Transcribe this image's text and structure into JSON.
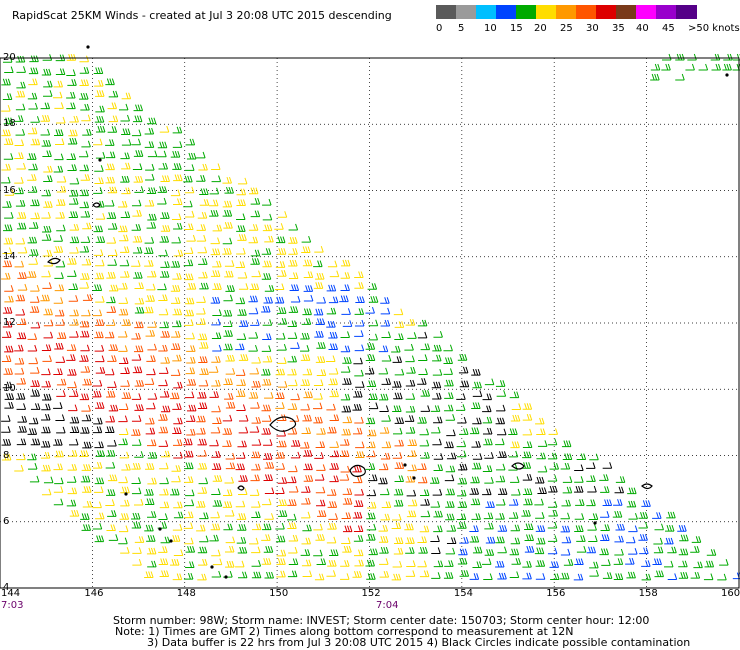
{
  "title": "RapidScat 25KM Winds - created at Jul  3 20:08 UTC 2015 descending",
  "colorbar": {
    "labels": [
      "0",
      "5",
      "10",
      "15",
      "20",
      "25",
      "30",
      "35",
      "40",
      "45",
      ">50 knots"
    ],
    "colors": [
      "#5a5a5a",
      "#9a9a9a",
      "#00bfff",
      "#0044ff",
      "#00aa00",
      "#ffdd00",
      "#ff9900",
      "#ff5500",
      "#dd0000",
      "#7a3a1a",
      "#ff00ff",
      "#9900cc",
      "#550088"
    ]
  },
  "map": {
    "lat_labels": [
      "20",
      "18",
      "16",
      "14",
      "12",
      "10",
      "8",
      "6",
      "4"
    ],
    "lon_labels": [
      "144",
      "146",
      "148",
      "150",
      "152",
      "154",
      "156",
      "158",
      "160"
    ],
    "time_labels": [
      "7:03",
      "7:04"
    ]
  },
  "footer": {
    "line1": "Storm number: 98W;  Storm name: INVEST;  Storm center date: 150703;  Storm center hour: 12:00",
    "line2": "Note: 1) Times are GMT  2) Times along bottom correspond to measurement at 12N",
    "line3": "3) Data buffer is 22 hrs from Jul  3 20:08 UTC 2015   4) Black Circles indicate possible contamination"
  }
}
